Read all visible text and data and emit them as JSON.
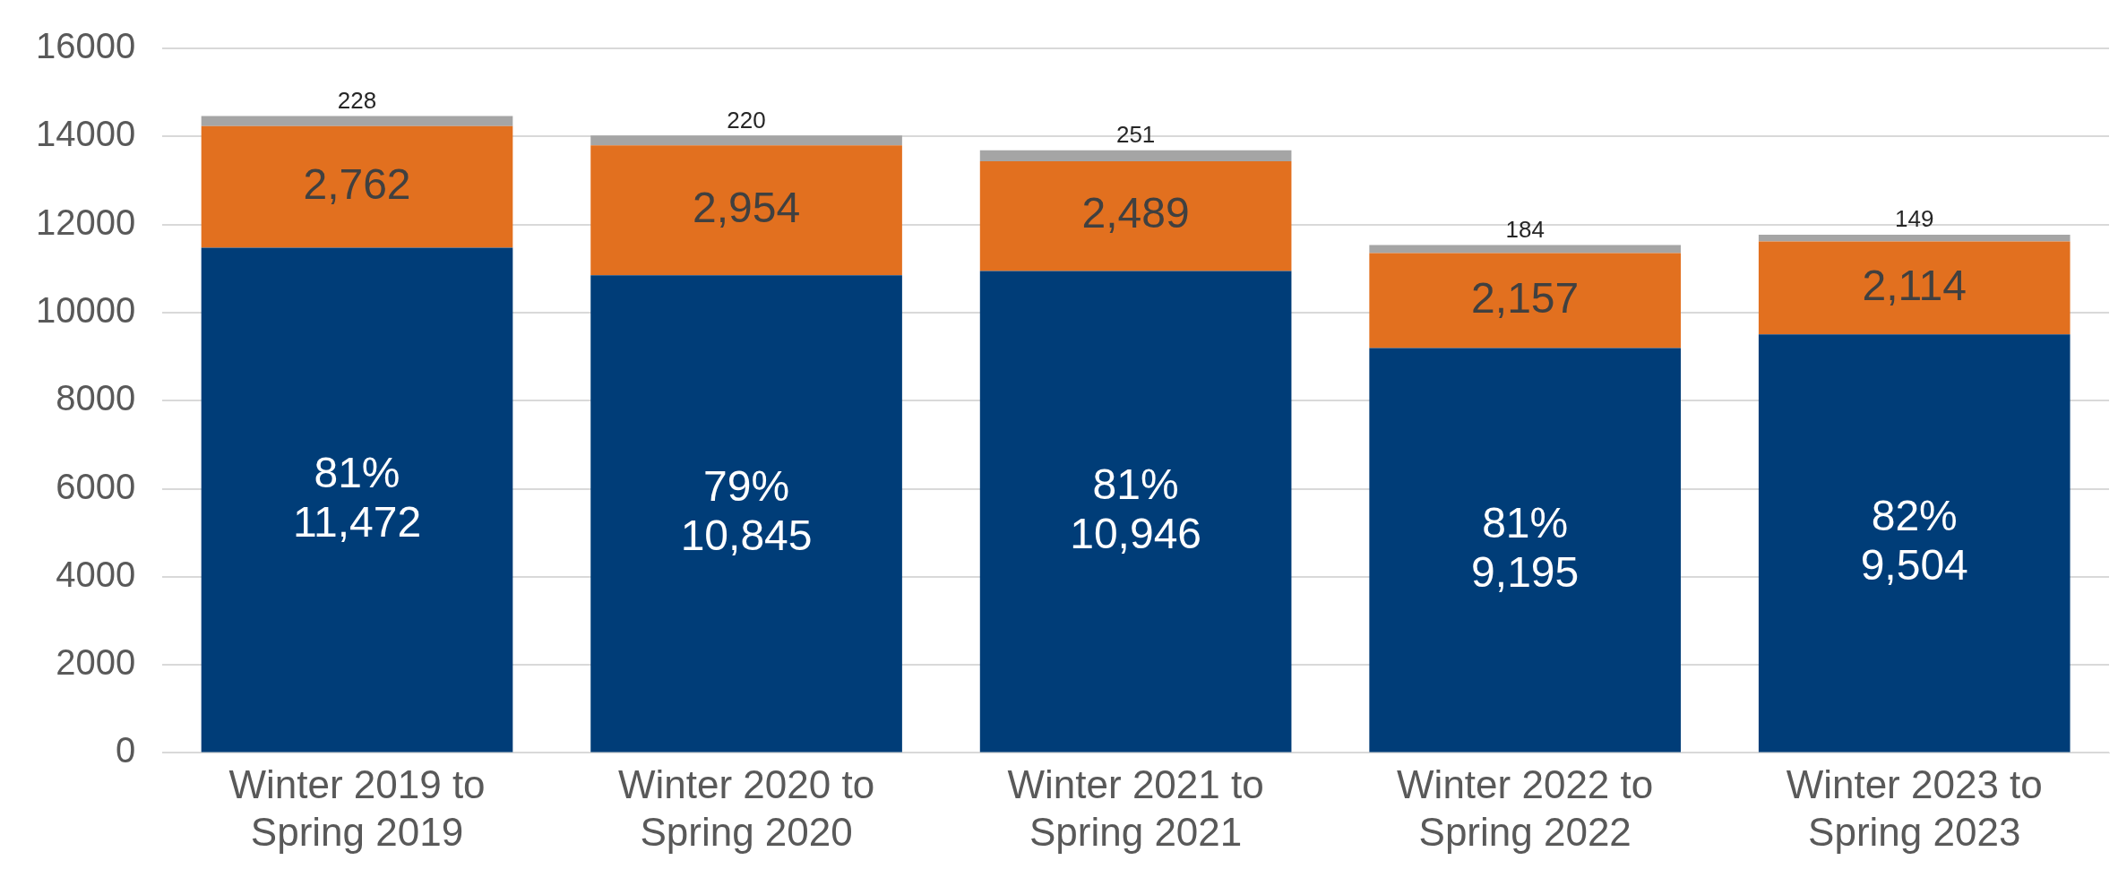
{
  "chart_data": {
    "type": "bar",
    "stacked": true,
    "categories": [
      "Winter 2019 to Spring 2019",
      "Winter 2020 to Spring 2020",
      "Winter 2021 to Spring 2021",
      "Winter 2022 to Spring 2022",
      "Winter 2023 to Spring 2023"
    ],
    "series": [
      {
        "color": "#003d78",
        "values": [
          11472,
          10845,
          10946,
          9195,
          9504
        ],
        "value_labels": [
          "81%\n11,472",
          "79%\n10,845",
          "81%\n10,946",
          "81%\n9,195",
          "82%\n9,504"
        ]
      },
      {
        "color": "#e2701f",
        "values": [
          2762,
          2954,
          2489,
          2157,
          2114
        ],
        "value_labels": [
          "2,762",
          "2,954",
          "2,489",
          "2,157",
          "2,114"
        ]
      },
      {
        "color": "#a5a5a5",
        "values": [
          228,
          220,
          251,
          184,
          149
        ],
        "value_labels": [
          "228",
          "220",
          "251",
          "184",
          "149"
        ]
      }
    ],
    "ylim": [
      0,
      16000
    ],
    "yticks": [
      0,
      2000,
      4000,
      6000,
      8000,
      10000,
      12000,
      14000,
      16000
    ],
    "grid": "y",
    "legend": false
  }
}
